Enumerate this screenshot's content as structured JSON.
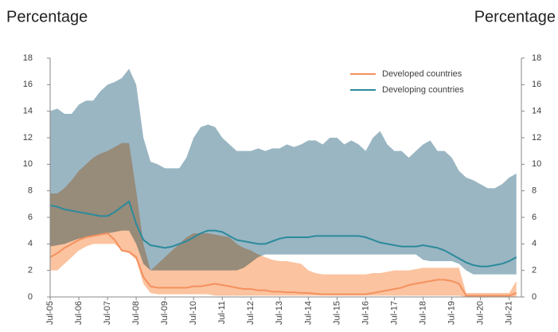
{
  "chart_data": {
    "type": "line",
    "left_title": "Percentage",
    "right_title": "Percentage",
    "categories": [
      "Jul-05",
      null,
      null,
      null,
      "Jul-06",
      null,
      null,
      null,
      "Jul-07",
      null,
      null,
      null,
      "Jul-08",
      null,
      null,
      null,
      "Jul-09",
      null,
      null,
      null,
      "Jul-10",
      null,
      null,
      null,
      "Jul-11",
      null,
      null,
      null,
      "Jul-12",
      null,
      null,
      null,
      "Jul-13",
      null,
      null,
      null,
      "Jul-14",
      null,
      null,
      null,
      "Jul-15",
      null,
      null,
      null,
      "Jul-16",
      null,
      null,
      null,
      "Jul-17",
      null,
      null,
      null,
      "Jul-18",
      null,
      null,
      null,
      "Jul-19",
      null,
      null,
      null,
      "Jul-20",
      null,
      null,
      null,
      "Jul-21",
      null
    ],
    "ylim": [
      0,
      18
    ],
    "yticks": [
      0,
      2,
      4,
      6,
      8,
      10,
      12,
      14,
      16,
      18
    ],
    "y2lim": [
      0,
      18
    ],
    "y2ticks": [
      0,
      2,
      4,
      6,
      8,
      10,
      12,
      14,
      16,
      18
    ],
    "legend": "upper right",
    "series": [
      {
        "name": "Developed countries",
        "color": "#f4915f",
        "band_color": "#fbc39f",
        "values": [
          3.0,
          3.3,
          3.7,
          4.0,
          4.3,
          4.5,
          4.6,
          4.7,
          4.8,
          4.3,
          3.5,
          3.4,
          3.0,
          1.5,
          0.8,
          0.7,
          0.7,
          0.7,
          0.7,
          0.7,
          0.8,
          0.8,
          0.9,
          1.0,
          0.9,
          0.8,
          0.7,
          0.6,
          0.6,
          0.5,
          0.5,
          0.4,
          0.4,
          0.35,
          0.35,
          0.3,
          0.3,
          0.25,
          0.2,
          0.2,
          0.2,
          0.2,
          0.2,
          0.2,
          0.2,
          0.3,
          0.4,
          0.5,
          0.6,
          0.7,
          0.9,
          1.0,
          1.1,
          1.2,
          1.3,
          1.3,
          1.2,
          1.0,
          0.1,
          0.1,
          0.1,
          0.1,
          0.1,
          0.1,
          0.1,
          0.3
        ],
        "band_low": [
          2.0,
          2.0,
          2.5,
          3.0,
          3.5,
          3.8,
          4.0,
          4.0,
          4.0,
          4.0,
          3.5,
          3.3,
          2.8,
          1.0,
          0.3,
          0.2,
          0.2,
          0.2,
          0.2,
          0.2,
          0.2,
          0.2,
          0.2,
          0.1,
          0.1,
          0.1,
          0.1,
          0.1,
          0.1,
          0.1,
          0.1,
          0.1,
          0.1,
          0.1,
          0.1,
          0.1,
          0.1,
          0.1,
          0.1,
          0.1,
          0.1,
          0.1,
          0.1,
          0.1,
          0.1,
          0.1,
          0.1,
          0.1,
          0.1,
          0.1,
          0.1,
          0.1,
          0.1,
          0.1,
          0.1,
          0.1,
          0.1,
          0.1,
          0,
          0,
          0,
          0,
          0,
          0,
          0,
          0
        ],
        "band_high": [
          7.8,
          7.8,
          8.2,
          8.8,
          9.5,
          10.0,
          10.5,
          10.8,
          11.0,
          11.3,
          11.6,
          11.6,
          8.0,
          4.0,
          2.0,
          2.5,
          3.0,
          3.5,
          4.0,
          4.5,
          4.8,
          4.8,
          4.8,
          4.7,
          4.6,
          4.5,
          4.0,
          3.7,
          3.5,
          3.2,
          3.0,
          2.8,
          2.7,
          2.7,
          2.6,
          2.5,
          2.0,
          1.8,
          1.7,
          1.7,
          1.7,
          1.7,
          1.7,
          1.7,
          1.7,
          1.8,
          1.8,
          1.9,
          2.0,
          2.0,
          2.0,
          2.1,
          2.2,
          2.2,
          2.2,
          2.2,
          2.2,
          2.2,
          0.3,
          0.3,
          0.3,
          0.3,
          0.3,
          0.3,
          0.3,
          1.2
        ]
      },
      {
        "name": "Developing countries",
        "color": "#2b8a9b",
        "band_color": "#9ab6c3",
        "values": [
          6.9,
          6.8,
          6.6,
          6.5,
          6.4,
          6.3,
          6.2,
          6.1,
          6.1,
          6.4,
          6.8,
          7.2,
          5.5,
          4.3,
          3.9,
          3.8,
          3.7,
          3.8,
          4.0,
          4.2,
          4.5,
          4.8,
          5.0,
          5.0,
          4.9,
          4.6,
          4.3,
          4.2,
          4.1,
          4.0,
          4.0,
          4.2,
          4.4,
          4.5,
          4.5,
          4.5,
          4.5,
          4.6,
          4.6,
          4.6,
          4.6,
          4.6,
          4.6,
          4.6,
          4.5,
          4.3,
          4.1,
          4.0,
          3.9,
          3.8,
          3.8,
          3.8,
          3.9,
          3.8,
          3.7,
          3.5,
          3.2,
          2.9,
          2.6,
          2.4,
          2.3,
          2.3,
          2.4,
          2.5,
          2.7,
          3.0
        ],
        "band_low": [
          3.8,
          3.9,
          4.0,
          4.2,
          4.4,
          4.5,
          4.6,
          4.7,
          4.8,
          4.9,
          5.0,
          5.0,
          4.0,
          2.5,
          2.0,
          2.0,
          2.0,
          2.0,
          2.0,
          2.0,
          2.0,
          2.0,
          2.0,
          2.0,
          2.0,
          2.0,
          2.0,
          2.2,
          2.6,
          3.0,
          3.2,
          3.2,
          3.2,
          3.2,
          3.2,
          3.2,
          3.2,
          3.2,
          3.2,
          3.2,
          3.2,
          3.2,
          3.2,
          3.2,
          3.2,
          3.2,
          3.2,
          3.2,
          3.2,
          3.2,
          3.2,
          3.2,
          2.8,
          2.7,
          2.7,
          2.7,
          2.7,
          2.5,
          2.0,
          1.7,
          1.7,
          1.7,
          1.7,
          1.7,
          1.7,
          1.7
        ],
        "band_high": [
          14.0,
          14.2,
          13.8,
          13.8,
          14.5,
          14.8,
          14.8,
          15.5,
          16.0,
          16.2,
          16.5,
          17.2,
          16.0,
          12.0,
          10.2,
          10.0,
          9.7,
          9.7,
          9.7,
          10.5,
          12.0,
          12.8,
          13.0,
          12.8,
          12.0,
          11.5,
          11.0,
          11.0,
          11.0,
          11.2,
          11.0,
          11.2,
          11.2,
          11.5,
          11.3,
          11.5,
          11.8,
          11.8,
          11.5,
          12.0,
          12.0,
          11.5,
          11.8,
          11.5,
          11.0,
          12.0,
          12.5,
          11.5,
          11.0,
          11.0,
          10.5,
          11.0,
          11.5,
          11.8,
          11.0,
          11.0,
          10.5,
          9.5,
          9.0,
          8.8,
          8.5,
          8.2,
          8.2,
          8.5,
          9.0,
          9.3
        ]
      }
    ]
  }
}
